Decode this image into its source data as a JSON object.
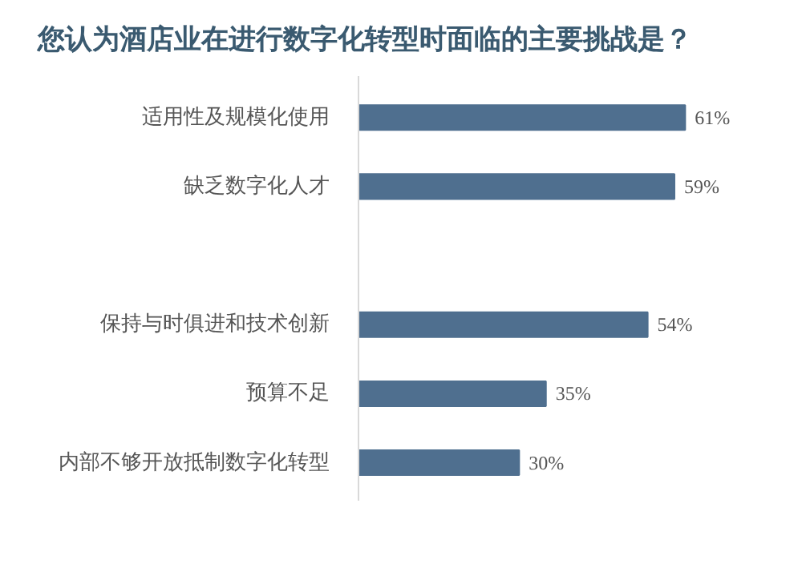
{
  "chart_data": {
    "type": "bar",
    "orientation": "horizontal",
    "title": "您认为酒店业在进行数字化转型时面临的主要挑战是？",
    "categories": [
      "适用性及规模化使用",
      "缺乏数字化人才",
      null,
      "保持与时俱进和技术创新",
      "预算不足",
      "内部不够开放抵制数字化转型"
    ],
    "values": [
      61,
      59,
      null,
      54,
      35,
      30
    ],
    "value_labels": [
      "61%",
      "59%",
      null,
      "54%",
      "35%",
      "30%"
    ],
    "color": "#4f6f8f",
    "grid": false
  }
}
